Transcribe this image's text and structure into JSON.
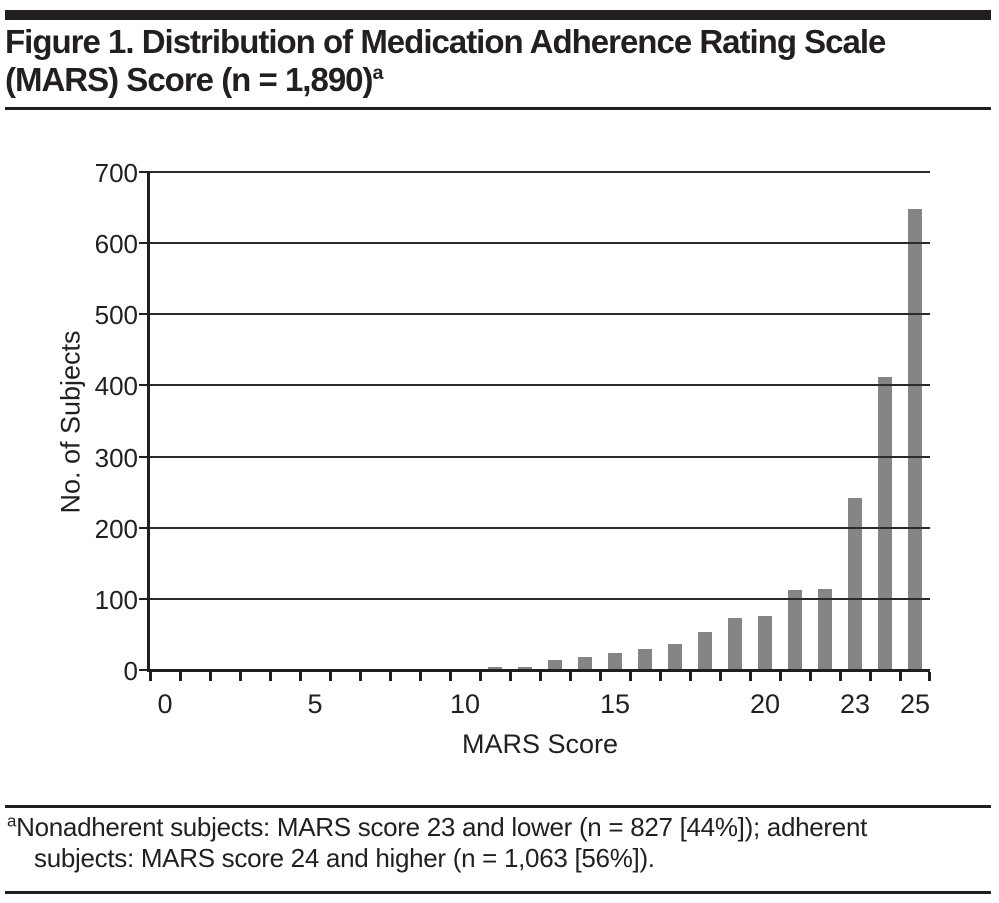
{
  "figure": {
    "title_line1": "Figure 1. Distribution of Medication Adherence Rating Scale",
    "title_line2": "(MARS) Score (n = 1,890)",
    "title_superscript": "a"
  },
  "footnote": {
    "marker": "a",
    "line1": "Nonadherent subjects: MARS score 23 and lower (n = 827 [44%]); adherent",
    "line2": "subjects: MARS score 24 and higher (n = 1,063 [56%])."
  },
  "chart_data": {
    "type": "bar",
    "title": "",
    "xlabel": "MARS Score",
    "ylabel": "No. of Subjects",
    "categories": [
      0,
      1,
      2,
      3,
      4,
      5,
      6,
      7,
      8,
      9,
      10,
      11,
      12,
      13,
      14,
      15,
      16,
      17,
      18,
      19,
      20,
      21,
      22,
      23,
      24,
      25
    ],
    "values": [
      0,
      0,
      0,
      0,
      0,
      2,
      0,
      0,
      0,
      3,
      2,
      5,
      6,
      15,
      20,
      26,
      31,
      38,
      55,
      75,
      77,
      114,
      115,
      243,
      413,
      650
    ],
    "ylim": [
      0,
      700
    ],
    "ytick_interval": 100,
    "xticks_labeled": [
      0,
      5,
      10,
      15,
      20,
      23,
      25
    ],
    "grid": true,
    "legend_position": "none",
    "bar_color": "#858585",
    "axis_color": "#231f20",
    "gridline_color": "#2b2b2b"
  },
  "colors": {
    "rule": "#231f20",
    "text": "#231f20",
    "background": "#ffffff"
  }
}
